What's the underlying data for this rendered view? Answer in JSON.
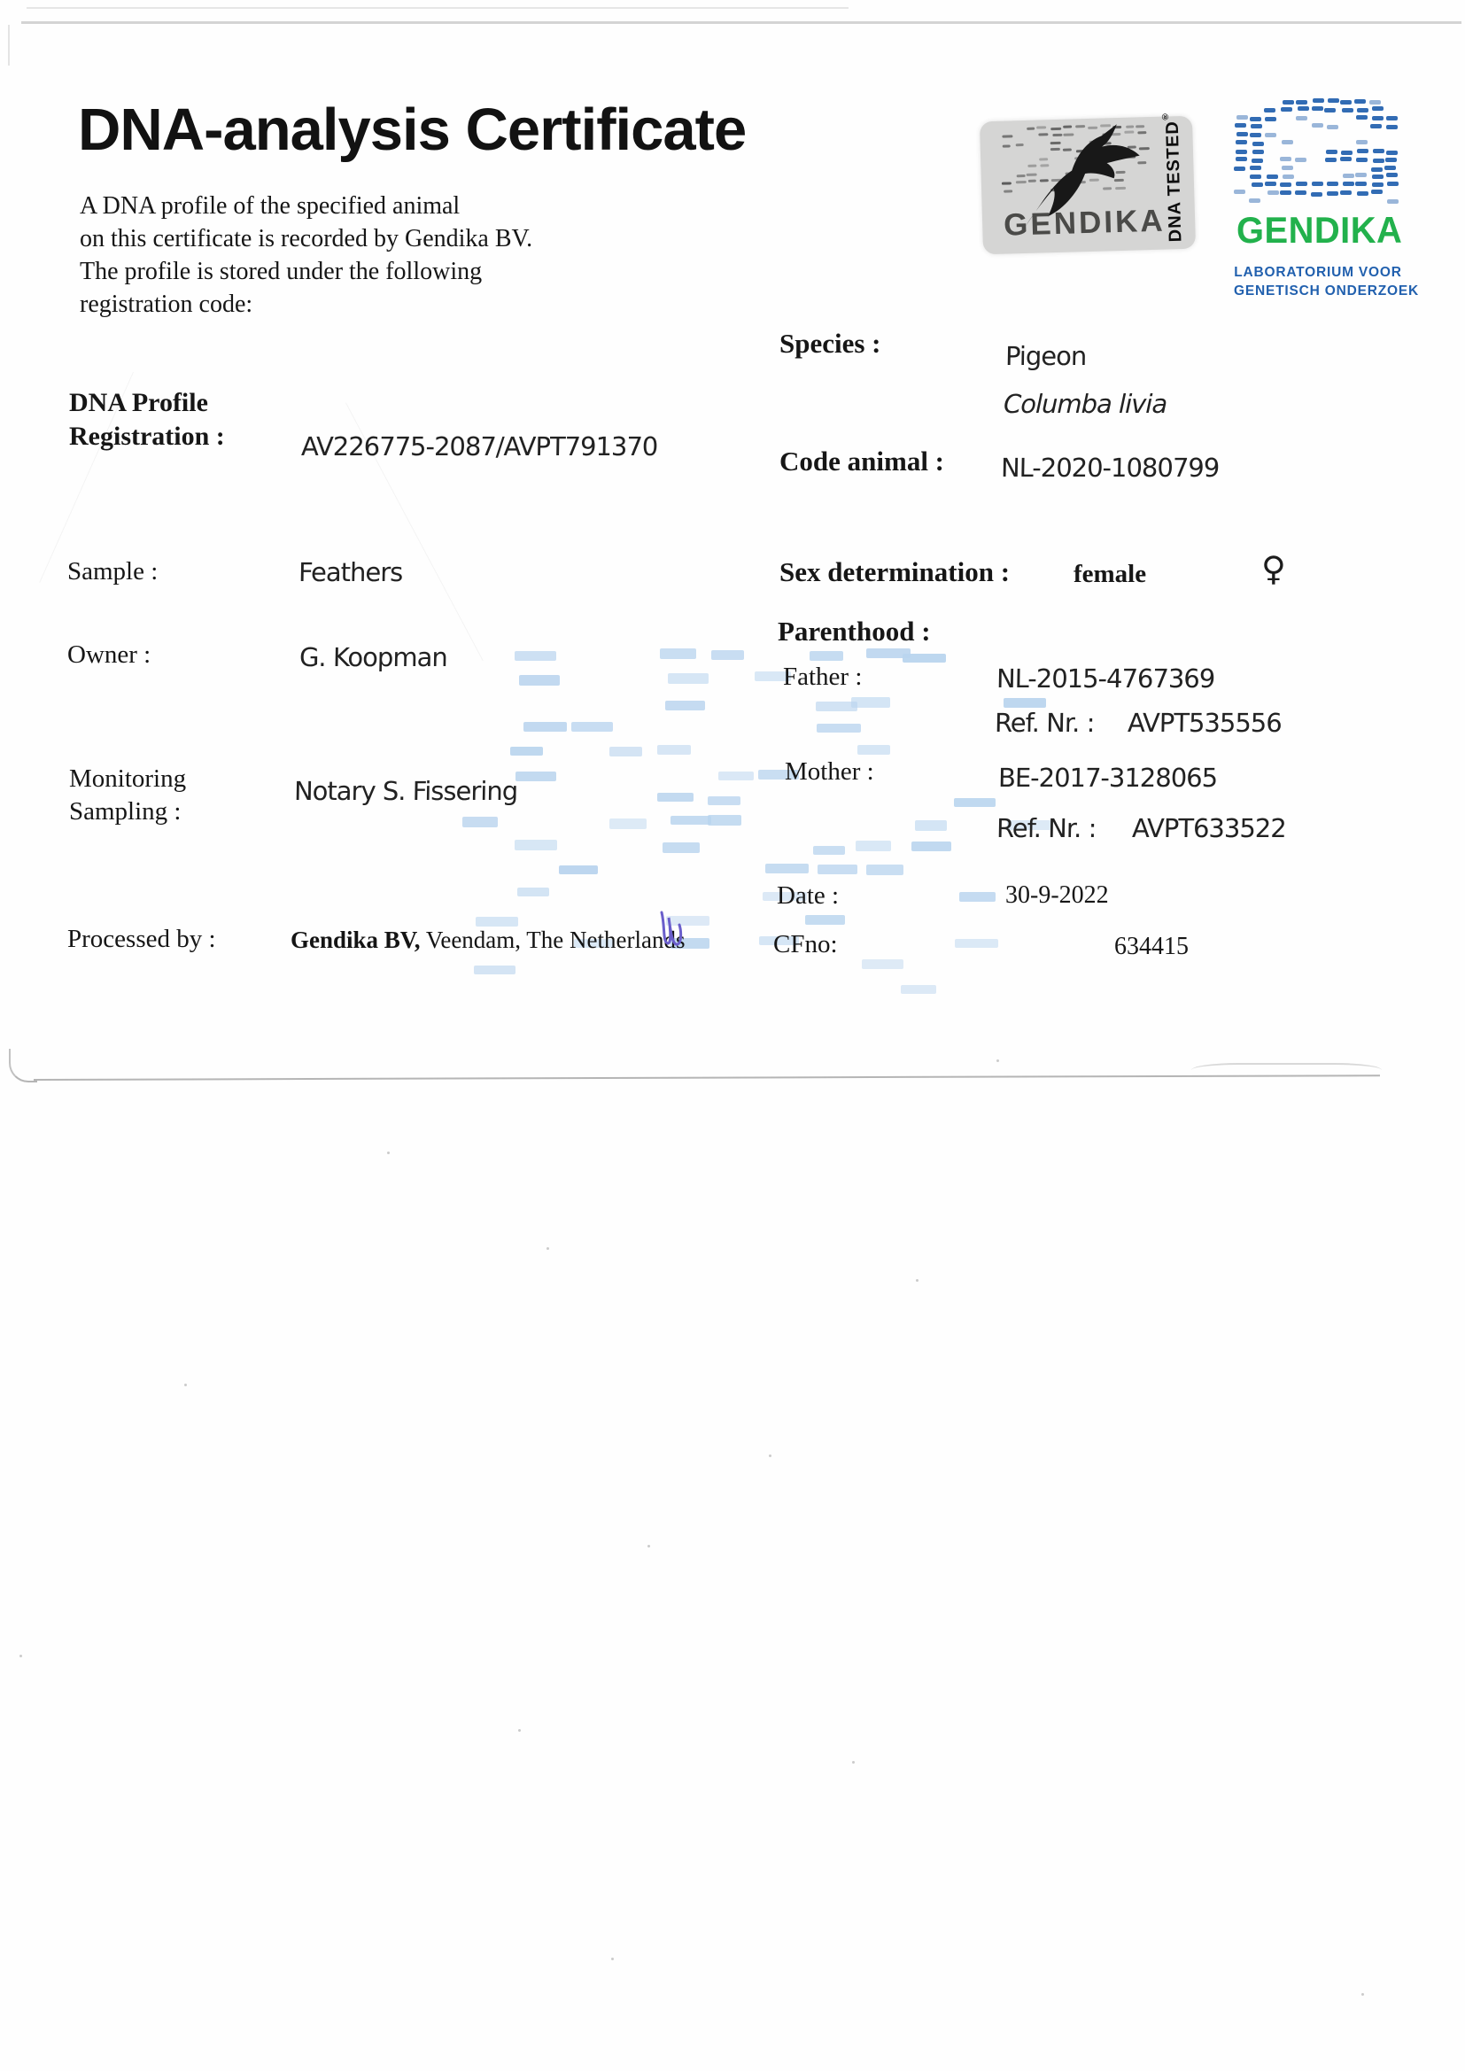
{
  "document": {
    "title": "DNA-analysis Certificate",
    "intro": {
      "line1": "A DNA profile of the specified animal",
      "line2": "on this certificate is recorded by Gendika BV.",
      "line3": "The profile is stored under the following",
      "line4": "registration code:"
    }
  },
  "stamp": {
    "brand": "GENDIKA",
    "tag": "DNA TESTED",
    "mark": "®"
  },
  "logo": {
    "brand": "GENDIKA",
    "subtitle1": "LABORATORIUM VOOR",
    "subtitle2": "GENETISCH ONDERZOEK"
  },
  "fields": {
    "registration": {
      "label1": "DNA Profile",
      "label2": "Registration :",
      "value": "AV226775-2087/AVPT791370"
    },
    "species": {
      "label": "Species :",
      "value": "Pigeon",
      "latin": "Columba livia"
    },
    "code_animal": {
      "label": "Code animal :",
      "value": "NL-2020-1080799"
    },
    "sample": {
      "label": "Sample :",
      "value": "Feathers"
    },
    "sex": {
      "label": "Sex determination :",
      "value": "female",
      "symbol": "♀"
    },
    "parenthood": {
      "label": "Parenthood :"
    },
    "father": {
      "label": "Father :",
      "value": "NL-2015-4767369",
      "ref_label": "Ref. Nr. :",
      "ref_value": "AVPT535556"
    },
    "mother": {
      "label": "Mother :",
      "value": "BE-2017-3128065",
      "ref_label": "Ref. Nr. :",
      "ref_value": "AVPT633522"
    },
    "owner": {
      "label": "Owner :",
      "value": "G. Koopman"
    },
    "monitoring": {
      "label1": "Monitoring",
      "label2": "Sampling :",
      "value": "Notary S. Fissering"
    },
    "date": {
      "label": "Date :",
      "value": "30-9-2022"
    },
    "processed": {
      "label": "Processed by :",
      "value_bold": "Gendika BV,",
      "value_rest": " Veendam, The Netherlands"
    },
    "cfno": {
      "label": "CFno:",
      "value": "634415"
    }
  },
  "colors": {
    "logo_blue": "#2160ae",
    "logo_green": "#22b14c",
    "watermark_blue": "#b9d4ee",
    "stamp_gray": "#d5d5d4",
    "stamp_dash": "#3b3b3b",
    "signature_purple": "#6a5ecb"
  }
}
